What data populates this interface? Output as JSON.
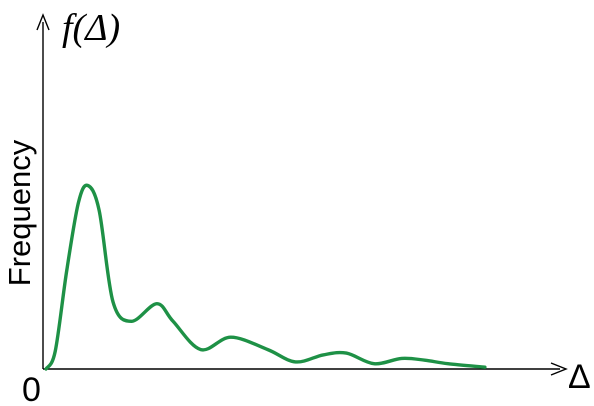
{
  "chart_data": {
    "type": "line",
    "title": "f(Δ)",
    "xlabel": "Δ",
    "ylabel": "Frequency",
    "origin_label": "0",
    "xlim": [
      0,
      10
    ],
    "ylim": [
      0,
      10
    ],
    "grid": false,
    "series": [
      {
        "color": "#1e9146",
        "points": [
          [
            0.0,
            0.0
          ],
          [
            0.2,
            0.5
          ],
          [
            0.45,
            2.8
          ],
          [
            0.7,
            4.7
          ],
          [
            0.9,
            5.2
          ],
          [
            1.15,
            4.5
          ],
          [
            1.45,
            1.9
          ],
          [
            1.85,
            1.35
          ],
          [
            2.4,
            1.85
          ],
          [
            2.75,
            1.35
          ],
          [
            3.35,
            0.55
          ],
          [
            4.0,
            0.9
          ],
          [
            4.8,
            0.55
          ],
          [
            5.4,
            0.2
          ],
          [
            6.0,
            0.4
          ],
          [
            6.5,
            0.45
          ],
          [
            7.1,
            0.15
          ],
          [
            7.7,
            0.3
          ],
          [
            8.2,
            0.25
          ],
          [
            8.7,
            0.15
          ],
          [
            9.5,
            0.05
          ]
        ]
      }
    ]
  }
}
